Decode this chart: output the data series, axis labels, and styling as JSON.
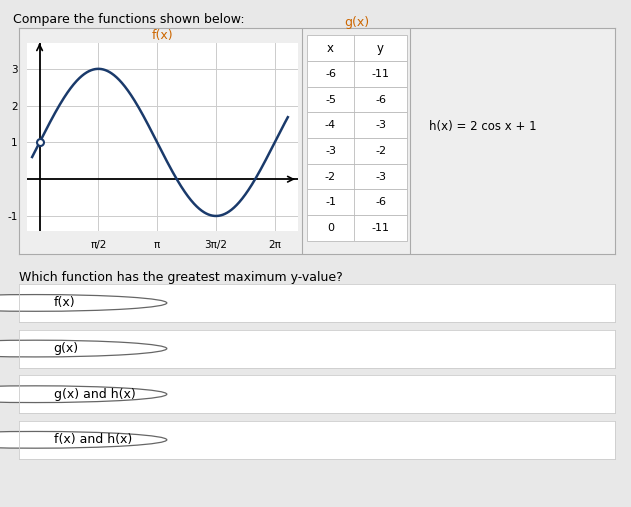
{
  "title": "Compare the functions shown below:",
  "fx_title": "f(x)",
  "gx_title": "g(x)",
  "hx_formula": "h(x) = 2 cos x + 1",
  "gx_table": {
    "x": [
      -6,
      -5,
      -4,
      -3,
      -2,
      -1,
      0
    ],
    "y": [
      -11,
      -6,
      -3,
      -2,
      -3,
      -6,
      -11
    ]
  },
  "question": "Which function has the greatest maximum y-value?",
  "options": [
    "f(x)",
    "g(x)",
    "g(x) and h(x)",
    "f(x) and h(x)"
  ],
  "outer_bg": "#e8e8e8",
  "panel_bg": "#eeeeee",
  "plot_bg": "#ffffff",
  "curve_color": "#1a3a6b",
  "fx_xlim": [
    -0.35,
    6.9
  ],
  "fx_ylim": [
    -1.4,
    3.7
  ],
  "fx_xticks": [
    1.5707963,
    3.14159265,
    4.71238898,
    6.28318531
  ],
  "fx_xtick_labels": [
    "π/2",
    "π",
    "3π/2",
    "2π"
  ],
  "fx_yticks": [
    -1,
    1,
    2,
    3
  ],
  "fx_ytick_labels": [
    "-1",
    "1",
    "2",
    "3"
  ],
  "divider_color": "#aaaaaa",
  "table_border": "#bbbbbb",
  "option_border": "#cccccc",
  "radio_color": "#666666"
}
